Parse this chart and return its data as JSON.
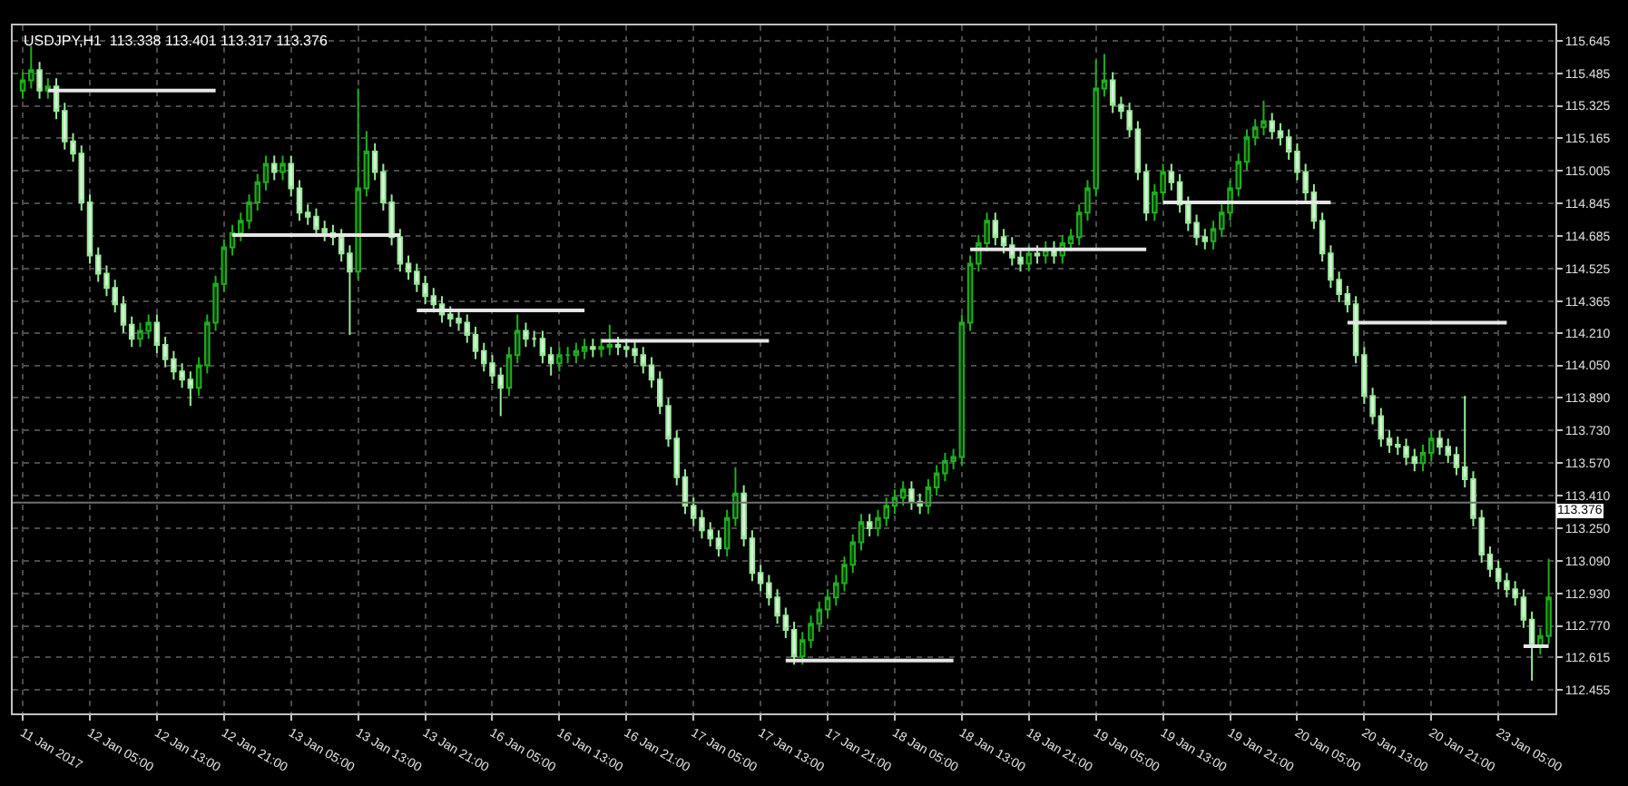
{
  "chart_data": {
    "type": "candlestick",
    "title": "USDJPY,H1  113.338 113.401 113.317 113.376",
    "categories": [
      "11 Jan 2017",
      null,
      null,
      null,
      null,
      null,
      null,
      null,
      "12 Jan 05:00",
      null,
      null,
      null,
      null,
      null,
      null,
      null,
      "12 Jan 13:00",
      null,
      null,
      null,
      null,
      null,
      null,
      null,
      "12 Jan 21:00",
      null,
      null,
      null,
      null,
      null,
      null,
      null,
      "13 Jan 05:00",
      null,
      null,
      null,
      null,
      null,
      null,
      null,
      "13 Jan 13:00",
      null,
      null,
      null,
      null,
      null,
      null,
      null,
      "13 Jan 21:00",
      null,
      null,
      null,
      null,
      null,
      null,
      null,
      "16 Jan 05:00",
      null,
      null,
      null,
      null,
      null,
      null,
      null,
      "16 Jan 13:00",
      null,
      null,
      null,
      null,
      null,
      null,
      null,
      "16 Jan 21:00",
      null,
      null,
      null,
      null,
      null,
      null,
      null,
      "17 Jan 05:00",
      null,
      null,
      null,
      null,
      null,
      null,
      null,
      "17 Jan 13:00",
      null,
      null,
      null,
      null,
      null,
      null,
      null,
      "17 Jan 21:00",
      null,
      null,
      null,
      null,
      null,
      null,
      null,
      "18 Jan 05:00",
      null,
      null,
      null,
      null,
      null,
      null,
      null,
      "18 Jan 13:00",
      null,
      null,
      null,
      null,
      null,
      null,
      null,
      "18 Jan 21:00",
      null,
      null,
      null,
      null,
      null,
      null,
      null,
      "19 Jan 05:00",
      null,
      null,
      null,
      null,
      null,
      null,
      null,
      "19 Jan 13:00",
      null,
      null,
      null,
      null,
      null,
      null,
      null,
      "19 Jan 21:00",
      null,
      null,
      null,
      null,
      null,
      null,
      null,
      "20 Jan 05:00",
      null,
      null,
      null,
      null,
      null,
      null,
      null,
      "20 Jan 13:00",
      null,
      null,
      null,
      null,
      null,
      null,
      null,
      "20 Jan 21:00",
      null,
      null,
      null,
      null,
      null,
      null,
      null,
      "23 Jan 05:00",
      null,
      null,
      null,
      null,
      null,
      null
    ],
    "ohlc": [
      [
        115.4,
        115.49,
        115.36,
        115.45
      ],
      [
        115.45,
        115.62,
        115.41,
        115.5
      ],
      [
        115.5,
        115.54,
        115.36,
        115.4
      ],
      [
        115.4,
        115.46,
        115.36,
        115.42
      ],
      [
        115.42,
        115.46,
        115.26,
        115.3
      ],
      [
        115.3,
        115.34,
        115.11,
        115.15
      ],
      [
        115.15,
        115.19,
        115.05,
        115.09
      ],
      [
        115.09,
        115.13,
        114.81,
        114.85
      ],
      [
        114.85,
        114.89,
        114.55,
        114.59
      ],
      [
        114.59,
        114.63,
        114.46,
        114.5
      ],
      [
        114.5,
        114.54,
        114.39,
        114.43
      ],
      [
        114.43,
        114.47,
        114.31,
        114.35
      ],
      [
        114.35,
        114.39,
        114.21,
        114.25
      ],
      [
        114.25,
        114.29,
        114.14,
        114.18
      ],
      [
        114.18,
        114.26,
        114.14,
        114.22
      ],
      [
        114.22,
        114.3,
        114.18,
        114.26
      ],
      [
        114.26,
        114.3,
        114.11,
        114.15
      ],
      [
        114.15,
        114.19,
        114.04,
        114.08
      ],
      [
        114.08,
        114.12,
        113.98,
        114.02
      ],
      [
        114.02,
        114.06,
        113.94,
        113.98
      ],
      [
        113.98,
        114.02,
        113.85,
        113.94
      ],
      [
        113.94,
        114.09,
        113.9,
        114.05
      ],
      [
        114.05,
        114.3,
        114.01,
        114.26
      ],
      [
        114.26,
        114.49,
        114.22,
        114.45
      ],
      [
        114.45,
        114.67,
        114.41,
        114.63
      ],
      [
        114.63,
        114.74,
        114.59,
        114.7
      ],
      [
        114.7,
        114.8,
        114.66,
        114.76
      ],
      [
        114.76,
        114.89,
        114.72,
        114.85
      ],
      [
        114.85,
        114.99,
        114.81,
        114.95
      ],
      [
        114.95,
        115.08,
        114.91,
        115.04
      ],
      [
        115.04,
        115.08,
        114.96,
        115.0
      ],
      [
        115.0,
        115.08,
        114.96,
        115.04
      ],
      [
        115.04,
        115.08,
        114.88,
        114.92
      ],
      [
        114.92,
        114.96,
        114.76,
        114.8
      ],
      [
        114.8,
        114.84,
        114.74,
        114.78
      ],
      [
        114.78,
        114.82,
        114.68,
        114.72
      ],
      [
        114.72,
        114.76,
        114.66,
        114.7
      ],
      [
        114.7,
        114.74,
        114.64,
        114.68
      ],
      [
        114.68,
        114.72,
        114.56,
        114.6
      ],
      [
        114.6,
        114.64,
        114.2,
        114.51
      ],
      [
        114.51,
        115.41,
        114.47,
        114.92
      ],
      [
        114.92,
        115.2,
        114.88,
        115.1
      ],
      [
        115.1,
        115.14,
        114.96,
        115.0
      ],
      [
        115.0,
        115.04,
        114.81,
        114.85
      ],
      [
        114.85,
        114.89,
        114.64,
        114.68
      ],
      [
        114.68,
        114.72,
        114.51,
        114.55
      ],
      [
        114.55,
        114.59,
        114.47,
        114.51
      ],
      [
        114.51,
        114.55,
        114.41,
        114.45
      ],
      [
        114.45,
        114.49,
        114.35,
        114.39
      ],
      [
        114.39,
        114.43,
        114.31,
        114.35
      ],
      [
        114.35,
        114.39,
        114.26,
        114.3
      ],
      [
        114.3,
        114.34,
        114.24,
        114.28
      ],
      [
        114.28,
        114.32,
        114.22,
        114.26
      ],
      [
        114.26,
        114.3,
        114.16,
        114.2
      ],
      [
        114.2,
        114.24,
        114.08,
        114.12
      ],
      [
        114.12,
        114.16,
        114.02,
        114.06
      ],
      [
        114.06,
        114.1,
        113.96,
        114.0
      ],
      [
        114.0,
        114.04,
        113.8,
        113.94
      ],
      [
        113.94,
        114.14,
        113.9,
        114.1
      ],
      [
        114.1,
        114.3,
        114.06,
        114.22
      ],
      [
        114.22,
        114.26,
        114.14,
        114.18
      ],
      [
        114.18,
        114.22,
        114.14,
        114.18
      ],
      [
        114.18,
        114.22,
        114.06,
        114.1
      ],
      [
        114.1,
        114.14,
        114.0,
        114.06
      ],
      [
        114.06,
        114.14,
        114.02,
        114.1
      ],
      [
        114.1,
        114.14,
        114.06,
        114.1
      ],
      [
        114.1,
        114.16,
        114.06,
        114.12
      ],
      [
        114.12,
        114.18,
        114.08,
        114.14
      ],
      [
        114.14,
        114.18,
        114.09,
        114.13
      ],
      [
        114.13,
        114.18,
        114.09,
        114.14
      ],
      [
        114.14,
        114.25,
        114.1,
        114.15
      ],
      [
        114.15,
        114.19,
        114.1,
        114.14
      ],
      [
        114.14,
        114.18,
        114.09,
        114.13
      ],
      [
        114.13,
        114.17,
        114.06,
        114.1
      ],
      [
        114.1,
        114.14,
        114.01,
        114.05
      ],
      [
        114.05,
        114.09,
        113.94,
        113.98
      ],
      [
        113.98,
        114.02,
        113.81,
        113.85
      ],
      [
        113.85,
        113.89,
        113.65,
        113.69
      ],
      [
        113.69,
        113.73,
        113.46,
        113.5
      ],
      [
        113.5,
        113.54,
        113.32,
        113.36
      ],
      [
        113.36,
        113.4,
        113.26,
        113.3
      ],
      [
        113.3,
        113.34,
        113.2,
        113.24
      ],
      [
        113.24,
        113.28,
        113.16,
        113.2
      ],
      [
        113.2,
        113.24,
        113.11,
        113.15
      ],
      [
        113.15,
        113.34,
        113.11,
        113.3
      ],
      [
        113.3,
        113.55,
        113.26,
        113.42
      ],
      [
        113.42,
        113.46,
        113.16,
        113.2
      ],
      [
        113.2,
        113.24,
        112.99,
        113.03
      ],
      [
        113.03,
        113.07,
        112.94,
        112.98
      ],
      [
        112.98,
        113.02,
        112.87,
        112.91
      ],
      [
        112.91,
        112.95,
        112.78,
        112.82
      ],
      [
        112.82,
        112.86,
        112.71,
        112.75
      ],
      [
        112.75,
        112.79,
        112.58,
        112.62
      ],
      [
        112.62,
        112.74,
        112.58,
        112.7
      ],
      [
        112.7,
        112.82,
        112.66,
        112.78
      ],
      [
        112.78,
        112.89,
        112.74,
        112.85
      ],
      [
        112.85,
        112.95,
        112.81,
        112.91
      ],
      [
        112.91,
        113.02,
        112.87,
        112.98
      ],
      [
        112.98,
        113.11,
        112.94,
        113.07
      ],
      [
        113.07,
        113.22,
        113.03,
        113.18
      ],
      [
        113.18,
        113.32,
        113.14,
        113.28
      ],
      [
        113.28,
        113.32,
        113.21,
        113.25
      ],
      [
        113.25,
        113.34,
        113.21,
        113.3
      ],
      [
        113.3,
        113.4,
        113.26,
        113.36
      ],
      [
        113.36,
        113.44,
        113.32,
        113.4
      ],
      [
        113.4,
        113.48,
        113.36,
        113.44
      ],
      [
        113.44,
        113.48,
        113.34,
        113.38
      ],
      [
        113.38,
        113.42,
        113.32,
        113.36
      ],
      [
        113.36,
        113.49,
        113.32,
        113.45
      ],
      [
        113.45,
        113.56,
        113.41,
        113.52
      ],
      [
        113.52,
        113.62,
        113.48,
        113.58
      ],
      [
        113.58,
        113.64,
        113.54,
        113.6
      ],
      [
        113.6,
        114.3,
        113.56,
        114.26
      ],
      [
        114.26,
        114.59,
        114.22,
        114.55
      ],
      [
        114.55,
        114.69,
        114.51,
        114.65
      ],
      [
        114.65,
        114.8,
        114.61,
        114.76
      ],
      [
        114.76,
        114.8,
        114.64,
        114.68
      ],
      [
        114.68,
        114.72,
        114.6,
        114.64
      ],
      [
        114.64,
        114.68,
        114.54,
        114.58
      ],
      [
        114.58,
        114.62,
        114.51,
        114.55
      ],
      [
        114.55,
        114.64,
        114.51,
        114.6
      ],
      [
        114.6,
        114.64,
        114.55,
        114.59
      ],
      [
        114.59,
        114.66,
        114.55,
        114.62
      ],
      [
        114.62,
        114.66,
        114.55,
        114.59
      ],
      [
        114.59,
        114.69,
        114.55,
        114.65
      ],
      [
        114.65,
        114.72,
        114.61,
        114.68
      ],
      [
        114.68,
        114.84,
        114.64,
        114.8
      ],
      [
        114.8,
        114.96,
        114.76,
        114.92
      ],
      [
        114.92,
        115.55,
        114.88,
        115.41
      ],
      [
        115.41,
        115.58,
        115.37,
        115.45
      ],
      [
        115.45,
        115.49,
        115.29,
        115.33
      ],
      [
        115.33,
        115.37,
        115.26,
        115.3
      ],
      [
        115.3,
        115.34,
        115.17,
        115.21
      ],
      [
        115.21,
        115.25,
        114.96,
        115.0
      ],
      [
        115.0,
        115.04,
        114.76,
        114.8
      ],
      [
        114.8,
        114.94,
        114.76,
        114.9
      ],
      [
        114.9,
        115.04,
        114.86,
        115.0
      ],
      [
        115.0,
        115.04,
        114.91,
        114.95
      ],
      [
        114.95,
        114.99,
        114.8,
        114.84
      ],
      [
        114.84,
        114.88,
        114.71,
        114.75
      ],
      [
        114.75,
        114.79,
        114.64,
        114.68
      ],
      [
        114.68,
        114.72,
        114.62,
        114.66
      ],
      [
        114.66,
        114.76,
        114.62,
        114.72
      ],
      [
        114.72,
        114.84,
        114.68,
        114.8
      ],
      [
        114.8,
        114.96,
        114.76,
        114.92
      ],
      [
        114.92,
        115.09,
        114.88,
        115.05
      ],
      [
        115.05,
        115.21,
        115.01,
        115.17
      ],
      [
        115.17,
        115.26,
        115.13,
        115.22
      ],
      [
        115.22,
        115.35,
        115.18,
        115.25
      ],
      [
        115.25,
        115.29,
        115.16,
        115.2
      ],
      [
        115.2,
        115.24,
        115.13,
        115.17
      ],
      [
        115.17,
        115.21,
        115.06,
        115.1
      ],
      [
        115.1,
        115.14,
        114.96,
        115.0
      ],
      [
        115.0,
        115.04,
        114.86,
        114.9
      ],
      [
        114.9,
        114.94,
        114.72,
        114.76
      ],
      [
        114.76,
        114.8,
        114.56,
        114.6
      ],
      [
        114.6,
        114.64,
        114.43,
        114.47
      ],
      [
        114.47,
        114.51,
        114.36,
        114.4
      ],
      [
        114.4,
        114.44,
        114.31,
        114.35
      ],
      [
        114.35,
        114.39,
        114.06,
        114.1
      ],
      [
        114.1,
        114.14,
        113.86,
        113.9
      ],
      [
        113.9,
        113.94,
        113.76,
        113.8
      ],
      [
        113.8,
        113.84,
        113.65,
        113.69
      ],
      [
        113.69,
        113.73,
        113.62,
        113.66
      ],
      [
        113.66,
        113.7,
        113.61,
        113.65
      ],
      [
        113.65,
        113.69,
        113.56,
        113.6
      ],
      [
        113.6,
        113.64,
        113.53,
        113.57
      ],
      [
        113.57,
        113.66,
        113.53,
        113.62
      ],
      [
        113.62,
        113.73,
        113.58,
        113.69
      ],
      [
        113.69,
        113.73,
        113.61,
        113.65
      ],
      [
        113.65,
        113.69,
        113.57,
        113.61
      ],
      [
        113.61,
        113.65,
        113.51,
        113.55
      ],
      [
        113.55,
        113.9,
        113.45,
        113.49
      ],
      [
        113.49,
        113.53,
        113.26,
        113.3
      ],
      [
        113.3,
        113.34,
        113.08,
        113.12
      ],
      [
        113.12,
        113.16,
        113.01,
        113.05
      ],
      [
        113.05,
        113.09,
        112.95,
        112.99
      ],
      [
        112.99,
        113.03,
        112.91,
        112.95
      ],
      [
        112.95,
        112.99,
        112.87,
        112.91
      ],
      [
        112.91,
        112.95,
        112.76,
        112.8
      ],
      [
        112.8,
        112.84,
        112.5,
        112.67
      ],
      [
        112.67,
        112.76,
        112.63,
        112.72
      ],
      [
        112.72,
        113.1,
        112.68,
        112.91
      ]
    ],
    "series": [
      {
        "type": "line",
        "color": "#e6e6e6",
        "values": [
          null,
          null,
          null,
          115.4,
          115.4,
          115.4,
          115.4,
          115.4,
          115.4,
          115.4,
          115.4,
          115.4,
          115.4,
          115.4,
          115.4,
          115.4,
          115.4,
          115.4,
          115.4,
          115.4,
          115.4,
          115.4,
          115.4,
          115.4,
          null,
          114.69,
          114.69,
          114.69,
          114.69,
          114.69,
          114.69,
          114.69,
          114.69,
          114.69,
          114.69,
          114.69,
          114.69,
          114.69,
          114.69,
          114.69,
          114.69,
          114.69,
          114.69,
          114.69,
          114.69,
          114.69,
          null,
          114.32,
          114.32,
          114.32,
          114.32,
          114.32,
          114.32,
          114.32,
          114.32,
          114.32,
          114.32,
          114.32,
          114.32,
          114.32,
          114.32,
          114.32,
          114.32,
          114.32,
          114.32,
          114.32,
          114.32,
          114.32,
          null,
          114.17,
          114.17,
          114.17,
          114.17,
          114.17,
          114.17,
          114.17,
          114.17,
          114.17,
          114.17,
          114.17,
          114.17,
          114.17,
          114.17,
          114.17,
          114.17,
          114.17,
          114.17,
          114.17,
          114.17,
          114.17,
          null,
          112.6,
          112.6,
          112.6,
          112.6,
          112.6,
          112.6,
          112.6,
          112.6,
          112.6,
          112.6,
          112.6,
          112.6,
          112.6,
          112.6,
          112.6,
          112.6,
          112.6,
          112.6,
          112.6,
          112.6,
          112.6,
          null,
          114.62,
          114.62,
          114.62,
          114.62,
          114.62,
          114.62,
          114.62,
          114.62,
          114.62,
          114.62,
          114.62,
          114.62,
          114.62,
          114.62,
          114.62,
          114.62,
          114.62,
          114.62,
          114.62,
          114.62,
          114.62,
          114.62,
          null,
          114.85,
          114.85,
          114.85,
          114.85,
          114.85,
          114.85,
          114.85,
          114.85,
          114.85,
          114.85,
          114.85,
          114.85,
          114.85,
          114.85,
          114.85,
          114.85,
          114.85,
          114.85,
          114.85,
          114.85,
          114.85,
          null,
          114.26,
          114.26,
          114.26,
          114.26,
          114.26,
          114.26,
          114.26,
          114.26,
          114.26,
          114.26,
          114.26,
          114.26,
          114.26,
          114.26,
          114.26,
          114.26,
          114.26,
          114.26,
          114.26,
          114.26,
          null,
          112.67,
          112.67,
          112.67,
          112.67
        ]
      }
    ],
    "ylim": [
      112.34,
      115.72
    ],
    "yticks": [
      {
        "value": 112.455,
        "label": "112.455"
      },
      {
        "value": 112.615,
        "label": "112.615"
      },
      {
        "value": 112.77,
        "label": "112.770"
      },
      {
        "value": 112.93,
        "label": "112.930"
      },
      {
        "value": 113.09,
        "label": "113.090"
      },
      {
        "value": 113.25,
        "label": "113.250"
      },
      {
        "value": 113.41,
        "label": "113.410"
      },
      {
        "value": 113.57,
        "label": "113.570"
      },
      {
        "value": 113.73,
        "label": "113.730"
      },
      {
        "value": 113.89,
        "label": "113.890"
      },
      {
        "value": 114.05,
        "label": "114.050"
      },
      {
        "value": 114.21,
        "label": "114.210"
      },
      {
        "value": 114.365,
        "label": "114.365"
      },
      {
        "value": 114.525,
        "label": "114.525"
      },
      {
        "value": 114.685,
        "label": "114.685"
      },
      {
        "value": 114.845,
        "label": "114.845"
      },
      {
        "value": 115.005,
        "label": "115.005"
      },
      {
        "value": 115.165,
        "label": "115.165"
      },
      {
        "value": 115.325,
        "label": "115.325"
      },
      {
        "value": 115.485,
        "label": "115.485"
      },
      {
        "value": 115.645,
        "label": "115.645"
      }
    ],
    "ref_lines": [
      {
        "axis": "y",
        "value": 113.376,
        "label": "113.376",
        "color": "#707070"
      }
    ],
    "grid": true
  }
}
